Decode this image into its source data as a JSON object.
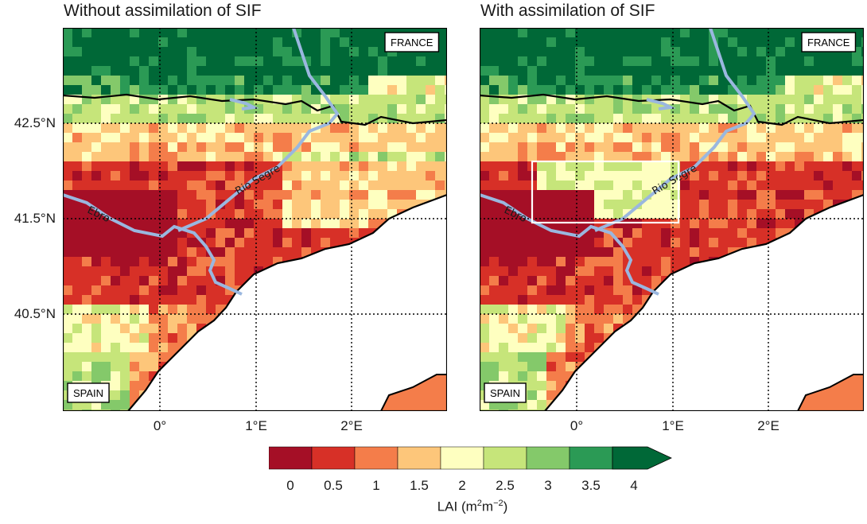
{
  "panels": [
    {
      "id": "left",
      "title": "Without assimilation of SIF",
      "country_top": "FRANCE",
      "country_bottom": "SPAIN",
      "river_1": "Ebro",
      "river_2": "Rio Segre",
      "highlight_box": false
    },
    {
      "id": "right",
      "title": "With assimilation of SIF",
      "country_top": "FRANCE",
      "country_bottom": "SPAIN",
      "river_1": "Ebro",
      "river_2": "Rio Segre",
      "highlight_box": true
    }
  ],
  "axes": {
    "lat_ticks": [
      "42.5°N",
      "41.5°N",
      "40.5°N"
    ],
    "lon_ticks": [
      "0°",
      "1°E",
      "2°E"
    ]
  },
  "colorbar": {
    "label": "LAI (m",
    "label_unit_a": "2",
    "label_mid": "m",
    "label_unit_b": "−2",
    "label_end": ")",
    "ticks": [
      "0",
      "0.5",
      "1",
      "1.5",
      "2",
      "2.5",
      "3",
      "3.5",
      "4"
    ],
    "colors": [
      "#a50f26",
      "#d73027",
      "#f47d4a",
      "#fdc67a",
      "#feffc0",
      "#c6e57a",
      "#84c96a",
      "#2b9a55",
      "#006837"
    ],
    "extend": "max"
  },
  "legend_colors": {
    "river": "#9ab7df",
    "coast": "#000000",
    "sea": "#ffffff"
  }
}
